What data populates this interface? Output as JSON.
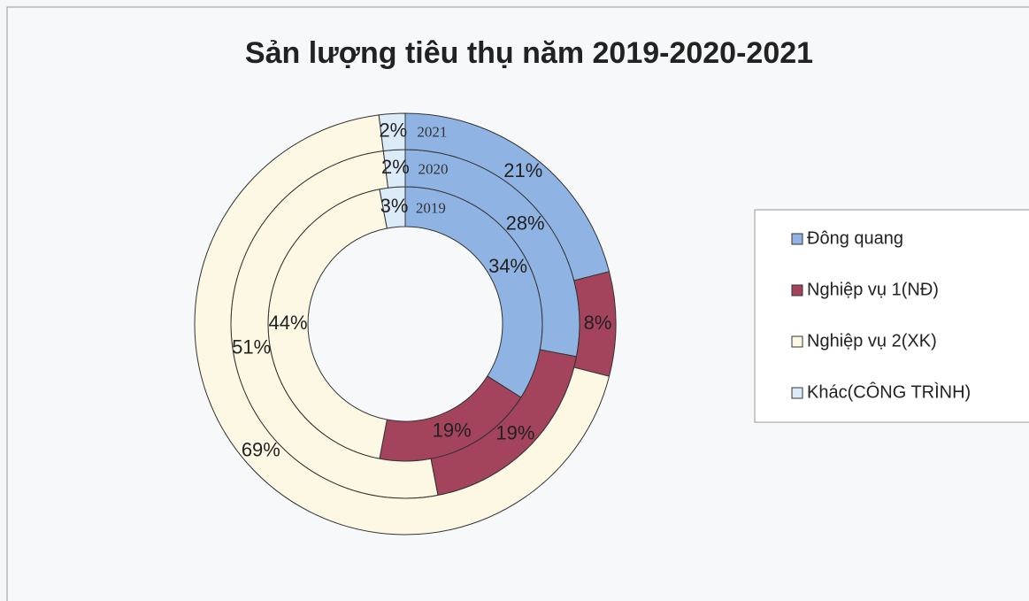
{
  "chart_data": {
    "type": "donut",
    "title": "Sản lượng tiêu thụ năm 2019-2020-2021",
    "categories": [
      "Đông quang",
      "Nghiệp vụ 1(NĐ)",
      "Nghiệp vụ 2(XK)",
      "Khác(CÔNG TRÌNH)"
    ],
    "colors": [
      "#8fb4e3",
      "#a3435c",
      "#fcf8e4",
      "#dcebf8"
    ],
    "series": [
      {
        "name": "2019",
        "values": [
          34,
          19,
          44,
          3
        ],
        "value_labels": [
          "34%",
          "19%",
          "44%",
          "3%"
        ]
      },
      {
        "name": "2020",
        "values": [
          28,
          19,
          51,
          2
        ],
        "value_labels": [
          "28%",
          "19%",
          "51%",
          "2%"
        ]
      },
      {
        "name": "2021",
        "values": [
          21,
          8,
          69,
          2
        ],
        "value_labels": [
          "21%",
          "8%",
          "69%",
          "2%"
        ]
      }
    ],
    "legend": "right"
  }
}
